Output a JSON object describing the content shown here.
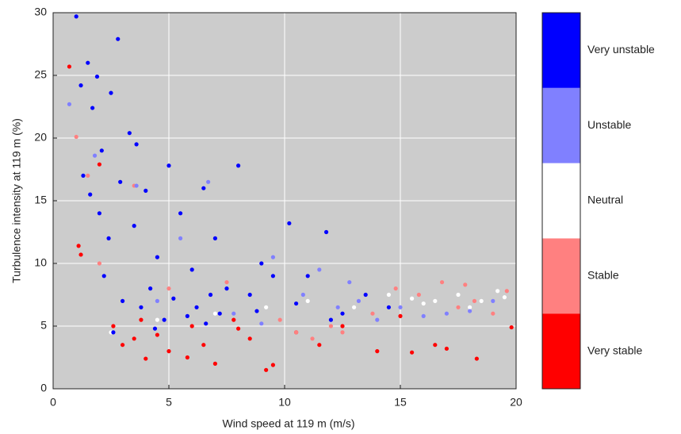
{
  "chart_data": {
    "type": "scatter",
    "x_label": "Wind speed at 119 m (m/s)",
    "y_label": "Turbulence intensity at 119 m (%)",
    "xlim": [
      0,
      20
    ],
    "ylim": [
      0,
      30
    ],
    "xticks": [
      0,
      5,
      10,
      15,
      20
    ],
    "yticks": [
      0,
      5,
      10,
      15,
      20,
      25,
      30
    ],
    "grid": true,
    "background": "#cccccc",
    "series": [
      {
        "name": "Very stable",
        "color": "#ff0000",
        "x": [
          0.7,
          1.1,
          1.2,
          2.0,
          2.6,
          3.0,
          3.5,
          4.0,
          4.5,
          5.0,
          5.8,
          6.5,
          7.0,
          7.8,
          8.5,
          9.2,
          9.5,
          10.5,
          11.5,
          12.5,
          14.0,
          15.5,
          16.5,
          17.0,
          18.3,
          19.8,
          3.8,
          6.0,
          8.0,
          15.0
        ],
        "values": [
          25.7,
          11.4,
          10.7,
          17.9,
          5.0,
          3.5,
          4.0,
          2.4,
          4.3,
          3.0,
          2.5,
          3.5,
          2.0,
          5.5,
          4.0,
          1.5,
          1.9,
          4.5,
          3.5,
          5.0,
          3.0,
          2.9,
          3.5,
          3.2,
          2.4,
          4.9,
          5.5,
          5.0,
          4.8,
          5.8
        ]
      },
      {
        "name": "Stable",
        "color": "#ff8080",
        "x": [
          1.0,
          1.5,
          2.0,
          3.5,
          5.0,
          7.5,
          9.8,
          11.2,
          12.5,
          13.8,
          14.8,
          15.8,
          16.8,
          17.5,
          18.2,
          19.0,
          19.6,
          12.0,
          17.8,
          10.5
        ],
        "values": [
          20.1,
          17.0,
          10.0,
          16.2,
          8.0,
          8.5,
          5.5,
          4.0,
          4.5,
          6.0,
          8.0,
          7.5,
          8.5,
          6.5,
          7.0,
          6.0,
          7.8,
          5.0,
          8.3,
          4.5
        ]
      },
      {
        "name": "Neutral",
        "color": "#ffffff",
        "x": [
          2.5,
          4.5,
          7.0,
          9.2,
          11.0,
          13.0,
          14.5,
          15.5,
          16.5,
          17.5,
          18.5,
          19.2,
          19.5,
          16.0,
          18.0
        ],
        "values": [
          4.5,
          5.5,
          6.0,
          6.5,
          7.0,
          6.5,
          7.5,
          7.2,
          7.0,
          7.5,
          7.0,
          7.8,
          7.3,
          6.8,
          6.5
        ]
      },
      {
        "name": "Unstable",
        "color": "#8080ff",
        "x": [
          0.7,
          1.8,
          3.6,
          5.5,
          6.7,
          9.5,
          10.8,
          11.5,
          12.3,
          13.2,
          14.0,
          15.0,
          16.0,
          17.0,
          18.0,
          19.0,
          4.5,
          7.8,
          9.0,
          12.8
        ],
        "values": [
          22.7,
          18.6,
          16.2,
          12.0,
          16.5,
          10.5,
          7.5,
          9.5,
          6.5,
          7.0,
          5.5,
          6.5,
          5.8,
          6.0,
          6.2,
          7.0,
          7.0,
          6.0,
          5.2,
          8.5
        ]
      },
      {
        "name": "Very unstable",
        "color": "#0000ff",
        "x": [
          1.0,
          1.2,
          1.5,
          1.7,
          1.9,
          2.1,
          2.5,
          2.8,
          3.3,
          3.6,
          1.3,
          1.6,
          2.0,
          2.4,
          2.9,
          3.5,
          4.0,
          4.5,
          5.0,
          5.5,
          6.0,
          6.5,
          7.0,
          7.5,
          8.0,
          8.5,
          9.0,
          9.5,
          10.2,
          11.0,
          11.8,
          12.5,
          13.5,
          14.5,
          3.0,
          4.2,
          5.2,
          6.2,
          7.2,
          2.2,
          3.8,
          4.8,
          5.8,
          6.8,
          8.8,
          10.5,
          12.0,
          2.6,
          4.4,
          6.6
        ],
        "values": [
          29.7,
          24.2,
          26.0,
          22.4,
          24.9,
          19.0,
          23.6,
          27.9,
          20.4,
          19.5,
          17.0,
          15.5,
          14.0,
          12.0,
          16.5,
          13.0,
          15.8,
          10.5,
          17.8,
          14.0,
          9.5,
          16.0,
          12.0,
          8.0,
          17.8,
          7.5,
          10.0,
          9.0,
          13.2,
          9.0,
          12.5,
          6.0,
          7.5,
          6.5,
          7.0,
          8.0,
          7.2,
          6.5,
          6.0,
          9.0,
          6.5,
          5.5,
          5.8,
          7.5,
          6.2,
          6.8,
          5.5,
          4.5,
          4.8,
          5.2
        ]
      }
    ]
  }
}
